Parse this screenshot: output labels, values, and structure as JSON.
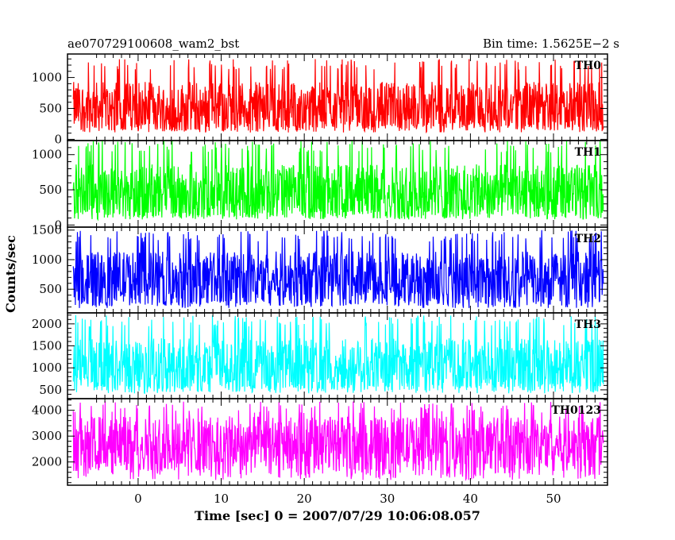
{
  "header": {
    "source_name": "ae070729100608_wam2_bst",
    "bin_time": "Bin time: 1.5625E−2 s"
  },
  "chart_data": {
    "type": "line",
    "title": "ae070729100608_wam2_bst",
    "subtitle": "Bin time: 1.5625E−2 s",
    "xlabel": "Time [sec] 0 = 2007/07/29 10:06:08.057",
    "ylabel": "Counts/sec",
    "xlim": [
      -8.5,
      56.5
    ],
    "x_data_range": [
      -7.8,
      56
    ],
    "x_ticks": [
      0,
      10,
      20,
      30,
      40,
      50
    ],
    "grid": false,
    "panels": [
      {
        "name": "TH0",
        "color": "#ff0000",
        "ylim": [
          -20,
          1380
        ],
        "y_ticks": [
          0,
          500,
          1000
        ],
        "level_typical": 520,
        "fluct_low": 130,
        "fluct_high": 1300
      },
      {
        "name": "TH1",
        "color": "#00ff00",
        "ylim": [
          -30,
          1200
        ],
        "y_ticks": [
          0,
          500,
          1000
        ],
        "level_typical": 470,
        "fluct_low": 80,
        "fluct_high": 1200
      },
      {
        "name": "TH2",
        "color": "#0000ff",
        "ylim": [
          100,
          1550
        ],
        "y_ticks": [
          500,
          1000,
          1500
        ],
        "level_typical": 680,
        "fluct_low": 180,
        "fluct_high": 1500
      },
      {
        "name": "TH3",
        "color": "#00ffff",
        "ylim": [
          300,
          2250
        ],
        "y_ticks": [
          500,
          1000,
          1500,
          2000
        ],
        "level_typical": 1050,
        "fluct_low": 420,
        "fluct_high": 2200
      },
      {
        "name": "TH0123",
        "color": "#ff00ff",
        "ylim": [
          1100,
          4450
        ],
        "y_ticks": [
          2000,
          3000,
          4000
        ],
        "level_typical": 2700,
        "fluct_low": 1300,
        "fluct_high": 4350
      }
    ]
  }
}
